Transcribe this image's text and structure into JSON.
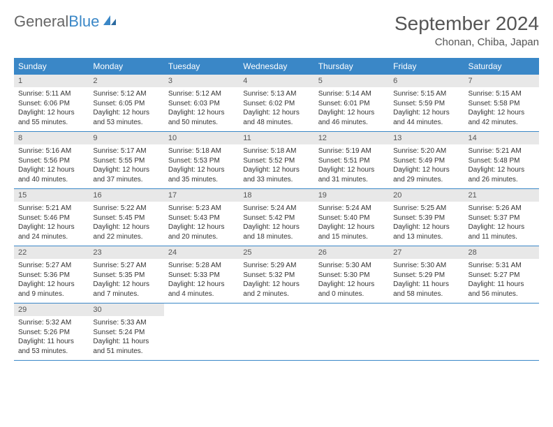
{
  "brand": {
    "part1": "General",
    "part2": "Blue"
  },
  "title": "September 2024",
  "location": "Chonan, Chiba, Japan",
  "days_of_week": [
    "Sunday",
    "Monday",
    "Tuesday",
    "Wednesday",
    "Thursday",
    "Friday",
    "Saturday"
  ],
  "colors": {
    "header_bar": "#3a87c7",
    "daynum_bg": "#e8e8e8",
    "text": "#333333",
    "title_text": "#555555"
  },
  "layout": {
    "calendar_cols": 7,
    "first_day_col": 0
  },
  "days": [
    {
      "n": "1",
      "sunrise": "Sunrise: 5:11 AM",
      "sunset": "Sunset: 6:06 PM",
      "daylight": "Daylight: 12 hours and 55 minutes."
    },
    {
      "n": "2",
      "sunrise": "Sunrise: 5:12 AM",
      "sunset": "Sunset: 6:05 PM",
      "daylight": "Daylight: 12 hours and 53 minutes."
    },
    {
      "n": "3",
      "sunrise": "Sunrise: 5:12 AM",
      "sunset": "Sunset: 6:03 PM",
      "daylight": "Daylight: 12 hours and 50 minutes."
    },
    {
      "n": "4",
      "sunrise": "Sunrise: 5:13 AM",
      "sunset": "Sunset: 6:02 PM",
      "daylight": "Daylight: 12 hours and 48 minutes."
    },
    {
      "n": "5",
      "sunrise": "Sunrise: 5:14 AM",
      "sunset": "Sunset: 6:01 PM",
      "daylight": "Daylight: 12 hours and 46 minutes."
    },
    {
      "n": "6",
      "sunrise": "Sunrise: 5:15 AM",
      "sunset": "Sunset: 5:59 PM",
      "daylight": "Daylight: 12 hours and 44 minutes."
    },
    {
      "n": "7",
      "sunrise": "Sunrise: 5:15 AM",
      "sunset": "Sunset: 5:58 PM",
      "daylight": "Daylight: 12 hours and 42 minutes."
    },
    {
      "n": "8",
      "sunrise": "Sunrise: 5:16 AM",
      "sunset": "Sunset: 5:56 PM",
      "daylight": "Daylight: 12 hours and 40 minutes."
    },
    {
      "n": "9",
      "sunrise": "Sunrise: 5:17 AM",
      "sunset": "Sunset: 5:55 PM",
      "daylight": "Daylight: 12 hours and 37 minutes."
    },
    {
      "n": "10",
      "sunrise": "Sunrise: 5:18 AM",
      "sunset": "Sunset: 5:53 PM",
      "daylight": "Daylight: 12 hours and 35 minutes."
    },
    {
      "n": "11",
      "sunrise": "Sunrise: 5:18 AM",
      "sunset": "Sunset: 5:52 PM",
      "daylight": "Daylight: 12 hours and 33 minutes."
    },
    {
      "n": "12",
      "sunrise": "Sunrise: 5:19 AM",
      "sunset": "Sunset: 5:51 PM",
      "daylight": "Daylight: 12 hours and 31 minutes."
    },
    {
      "n": "13",
      "sunrise": "Sunrise: 5:20 AM",
      "sunset": "Sunset: 5:49 PM",
      "daylight": "Daylight: 12 hours and 29 minutes."
    },
    {
      "n": "14",
      "sunrise": "Sunrise: 5:21 AM",
      "sunset": "Sunset: 5:48 PM",
      "daylight": "Daylight: 12 hours and 26 minutes."
    },
    {
      "n": "15",
      "sunrise": "Sunrise: 5:21 AM",
      "sunset": "Sunset: 5:46 PM",
      "daylight": "Daylight: 12 hours and 24 minutes."
    },
    {
      "n": "16",
      "sunrise": "Sunrise: 5:22 AM",
      "sunset": "Sunset: 5:45 PM",
      "daylight": "Daylight: 12 hours and 22 minutes."
    },
    {
      "n": "17",
      "sunrise": "Sunrise: 5:23 AM",
      "sunset": "Sunset: 5:43 PM",
      "daylight": "Daylight: 12 hours and 20 minutes."
    },
    {
      "n": "18",
      "sunrise": "Sunrise: 5:24 AM",
      "sunset": "Sunset: 5:42 PM",
      "daylight": "Daylight: 12 hours and 18 minutes."
    },
    {
      "n": "19",
      "sunrise": "Sunrise: 5:24 AM",
      "sunset": "Sunset: 5:40 PM",
      "daylight": "Daylight: 12 hours and 15 minutes."
    },
    {
      "n": "20",
      "sunrise": "Sunrise: 5:25 AM",
      "sunset": "Sunset: 5:39 PM",
      "daylight": "Daylight: 12 hours and 13 minutes."
    },
    {
      "n": "21",
      "sunrise": "Sunrise: 5:26 AM",
      "sunset": "Sunset: 5:37 PM",
      "daylight": "Daylight: 12 hours and 11 minutes."
    },
    {
      "n": "22",
      "sunrise": "Sunrise: 5:27 AM",
      "sunset": "Sunset: 5:36 PM",
      "daylight": "Daylight: 12 hours and 9 minutes."
    },
    {
      "n": "23",
      "sunrise": "Sunrise: 5:27 AM",
      "sunset": "Sunset: 5:35 PM",
      "daylight": "Daylight: 12 hours and 7 minutes."
    },
    {
      "n": "24",
      "sunrise": "Sunrise: 5:28 AM",
      "sunset": "Sunset: 5:33 PM",
      "daylight": "Daylight: 12 hours and 4 minutes."
    },
    {
      "n": "25",
      "sunrise": "Sunrise: 5:29 AM",
      "sunset": "Sunset: 5:32 PM",
      "daylight": "Daylight: 12 hours and 2 minutes."
    },
    {
      "n": "26",
      "sunrise": "Sunrise: 5:30 AM",
      "sunset": "Sunset: 5:30 PM",
      "daylight": "Daylight: 12 hours and 0 minutes."
    },
    {
      "n": "27",
      "sunrise": "Sunrise: 5:30 AM",
      "sunset": "Sunset: 5:29 PM",
      "daylight": "Daylight: 11 hours and 58 minutes."
    },
    {
      "n": "28",
      "sunrise": "Sunrise: 5:31 AM",
      "sunset": "Sunset: 5:27 PM",
      "daylight": "Daylight: 11 hours and 56 minutes."
    },
    {
      "n": "29",
      "sunrise": "Sunrise: 5:32 AM",
      "sunset": "Sunset: 5:26 PM",
      "daylight": "Daylight: 11 hours and 53 minutes."
    },
    {
      "n": "30",
      "sunrise": "Sunrise: 5:33 AM",
      "sunset": "Sunset: 5:24 PM",
      "daylight": "Daylight: 11 hours and 51 minutes."
    }
  ]
}
